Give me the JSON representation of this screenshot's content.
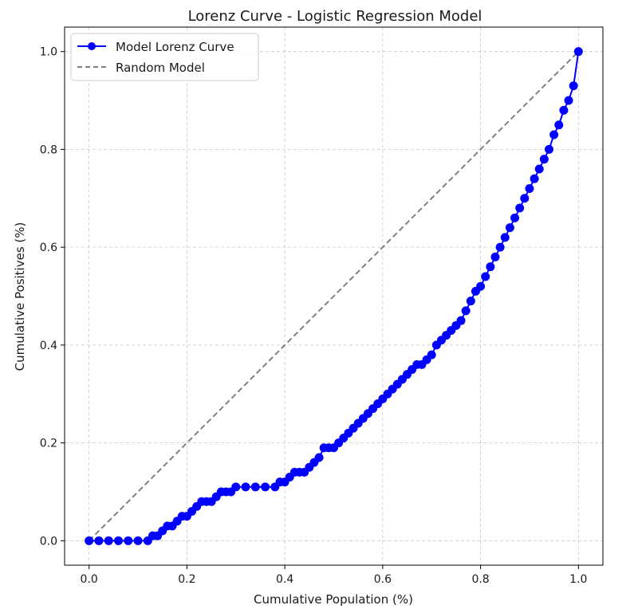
{
  "chart_data": {
    "type": "line",
    "title": "Lorenz Curve - Logistic Regression Model",
    "xlabel": "Cumulative Population (%)",
    "ylabel": "Cumulative Positives (%)",
    "xlim": [
      -0.05,
      1.05
    ],
    "ylim": [
      -0.05,
      1.05
    ],
    "xticks": [
      "0.0",
      "0.2",
      "0.4",
      "0.6",
      "0.8",
      "1.0"
    ],
    "yticks": [
      "0.0",
      "0.2",
      "0.4",
      "0.6",
      "0.8",
      "1.0"
    ],
    "grid": true,
    "legend_position": "top-left",
    "series": [
      {
        "name": "Model Lorenz Curve",
        "color": "#0000ff",
        "style": "solid-with-markers",
        "x": [
          0.0,
          0.02,
          0.04,
          0.06,
          0.08,
          0.1,
          0.12,
          0.13,
          0.14,
          0.15,
          0.16,
          0.17,
          0.18,
          0.19,
          0.2,
          0.21,
          0.22,
          0.23,
          0.24,
          0.25,
          0.26,
          0.27,
          0.28,
          0.29,
          0.3,
          0.32,
          0.34,
          0.36,
          0.38,
          0.39,
          0.4,
          0.41,
          0.42,
          0.43,
          0.44,
          0.45,
          0.46,
          0.47,
          0.48,
          0.49,
          0.5,
          0.51,
          0.52,
          0.53,
          0.54,
          0.55,
          0.56,
          0.57,
          0.58,
          0.59,
          0.6,
          0.61,
          0.62,
          0.63,
          0.64,
          0.65,
          0.66,
          0.67,
          0.68,
          0.69,
          0.7,
          0.71,
          0.72,
          0.73,
          0.74,
          0.75,
          0.76,
          0.77,
          0.78,
          0.79,
          0.8,
          0.81,
          0.82,
          0.83,
          0.84,
          0.85,
          0.86,
          0.87,
          0.88,
          0.89,
          0.9,
          0.91,
          0.92,
          0.93,
          0.94,
          0.95,
          0.96,
          0.97,
          0.98,
          0.99,
          1.0
        ],
        "y": [
          0.0,
          0.0,
          0.0,
          0.0,
          0.0,
          0.0,
          0.0,
          0.01,
          0.01,
          0.02,
          0.03,
          0.03,
          0.04,
          0.05,
          0.05,
          0.06,
          0.07,
          0.08,
          0.08,
          0.08,
          0.09,
          0.1,
          0.1,
          0.1,
          0.11,
          0.11,
          0.11,
          0.11,
          0.11,
          0.12,
          0.12,
          0.13,
          0.14,
          0.14,
          0.14,
          0.15,
          0.16,
          0.17,
          0.19,
          0.19,
          0.19,
          0.2,
          0.21,
          0.22,
          0.23,
          0.24,
          0.25,
          0.26,
          0.27,
          0.28,
          0.29,
          0.3,
          0.31,
          0.32,
          0.33,
          0.34,
          0.35,
          0.36,
          0.36,
          0.37,
          0.38,
          0.4,
          0.41,
          0.42,
          0.43,
          0.44,
          0.45,
          0.47,
          0.49,
          0.51,
          0.52,
          0.54,
          0.56,
          0.58,
          0.6,
          0.62,
          0.64,
          0.66,
          0.68,
          0.7,
          0.72,
          0.74,
          0.76,
          0.78,
          0.8,
          0.83,
          0.85,
          0.88,
          0.9,
          0.93,
          1.0
        ]
      },
      {
        "name": "Random Model",
        "color": "#808080",
        "style": "dashed",
        "x": [
          0.0,
          1.0
        ],
        "y": [
          0.0,
          1.0
        ]
      }
    ]
  }
}
